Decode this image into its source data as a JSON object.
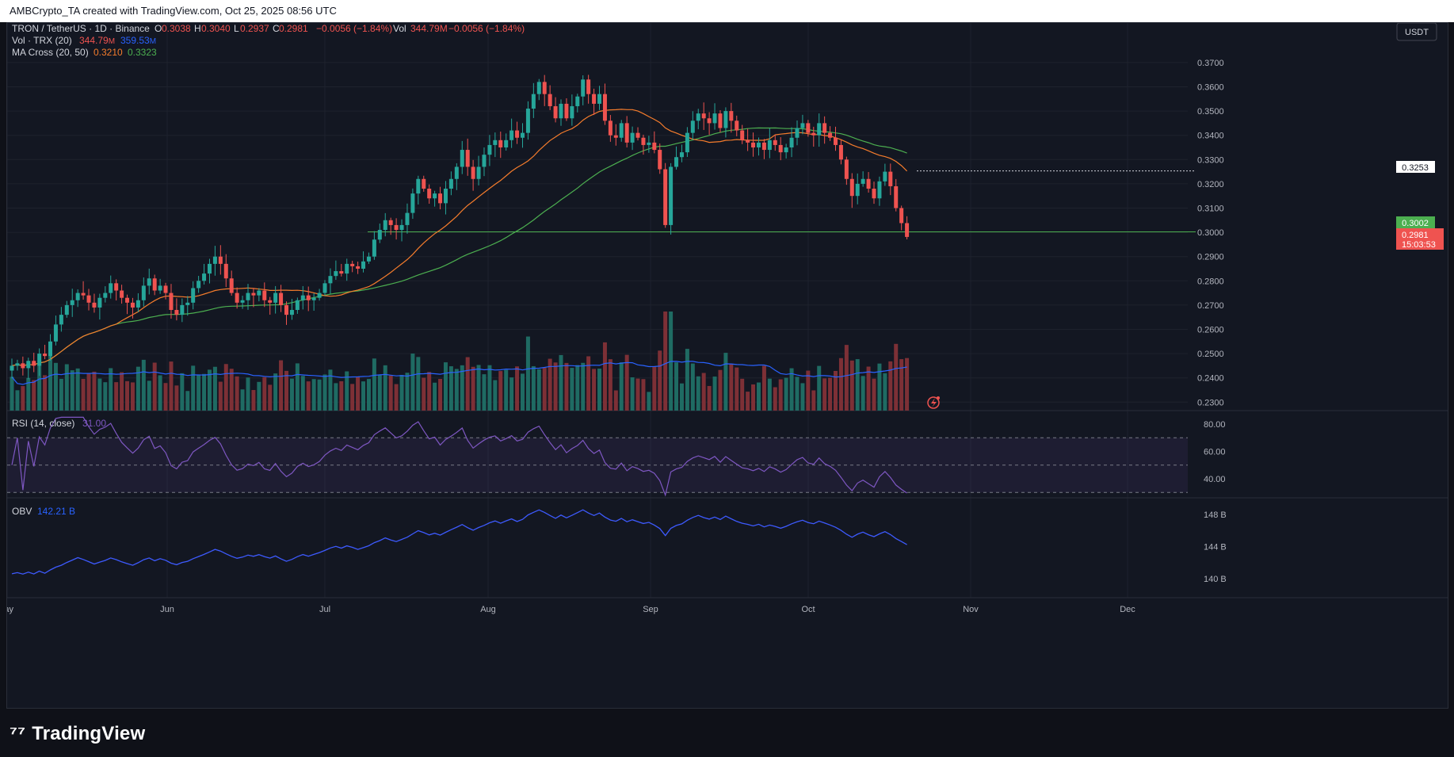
{
  "header": {
    "text": "AMBCrypto_TA created with TradingView.com, Oct 25, 2025 08:56 UTC"
  },
  "symbol_legend": {
    "name": "TRON / TetherUS · 1D · Binance",
    "o_label": "O",
    "o": "0.3038",
    "h_label": "H",
    "h": "0.3040",
    "l_label": "L",
    "l": "0.2937",
    "c_label": "C",
    "c": "0.2981",
    "change": "−0.0056 (−1.84%)",
    "vol_label": "Vol",
    "vol": "344.79M",
    "vol_change": "−0.0056 (−1.84%)"
  },
  "vol_legend": {
    "name": "Vol · TRX (20)",
    "v1": "344.79",
    "v1_unit": "M",
    "v2": "359.53",
    "v2_unit": "M"
  },
  "ma_legend": {
    "name": "MA Cross (20, 50)",
    "v1": "0.3210",
    "v2": "0.3323"
  },
  "rsi_legend": {
    "name": "RSI (14, close)",
    "value": "31.00"
  },
  "obv_legend": {
    "name": "OBV",
    "value": "142.21 B"
  },
  "currency_button": "USDT",
  "price_tags": {
    "level": "0.3253",
    "support": "0.3002",
    "last": "0.2981",
    "countdown": "15:03:53"
  },
  "colors": {
    "up": "#26a69a",
    "down": "#ef5350",
    "ma_fast": "#f57c2c",
    "ma_slow": "#4caf50",
    "vol_ma": "#2962ff",
    "rsi": "#7e57c2",
    "obv": "#3d5afe",
    "support": "#4caf50"
  },
  "brand": "TradingView",
  "chart_data": {
    "type": "candlestick",
    "title": "TRON / TetherUS · 1D · Binance",
    "x_labels": [
      "May",
      "Jun",
      "Jul",
      "Aug",
      "Sep",
      "Oct",
      "Nov",
      "Dec"
    ],
    "price_axis": {
      "ticks": [
        "0.3700",
        "0.3600",
        "0.3500",
        "0.3400",
        "0.3300",
        "0.3200",
        "0.3100",
        "0.3000",
        "0.2900",
        "0.2800",
        "0.2700",
        "0.2600",
        "0.2500",
        "0.2400",
        "0.2300"
      ],
      "range": [
        0.2265,
        0.3765
      ]
    },
    "rsi_axis": {
      "ticks": [
        "80.00",
        "60.00",
        "40.00"
      ],
      "upper": 70,
      "middle": 50,
      "lower": 30
    },
    "obv_axis": {
      "ticks": [
        "148 B",
        "144 B",
        "140 B"
      ]
    },
    "support_level": 0.3002,
    "resistance_level": 0.3253,
    "series": [
      {
        "name": "TRON / TetherUS",
        "closes": [
          0.245,
          0.246,
          0.244,
          0.247,
          0.245,
          0.25,
          0.249,
          0.255,
          0.262,
          0.266,
          0.27,
          0.272,
          0.275,
          0.274,
          0.271,
          0.269,
          0.273,
          0.275,
          0.279,
          0.276,
          0.273,
          0.271,
          0.269,
          0.272,
          0.278,
          0.281,
          0.276,
          0.278,
          0.275,
          0.268,
          0.266,
          0.27,
          0.271,
          0.277,
          0.28,
          0.283,
          0.287,
          0.29,
          0.287,
          0.281,
          0.275,
          0.271,
          0.272,
          0.275,
          0.274,
          0.276,
          0.272,
          0.271,
          0.275,
          0.27,
          0.266,
          0.268,
          0.272,
          0.274,
          0.272,
          0.273,
          0.275,
          0.279,
          0.282,
          0.284,
          0.283,
          0.287,
          0.286,
          0.285,
          0.288,
          0.29,
          0.297,
          0.301,
          0.305,
          0.303,
          0.301,
          0.303,
          0.308,
          0.316,
          0.322,
          0.318,
          0.314,
          0.316,
          0.312,
          0.318,
          0.322,
          0.327,
          0.334,
          0.327,
          0.322,
          0.327,
          0.332,
          0.336,
          0.338,
          0.335,
          0.338,
          0.342,
          0.339,
          0.341,
          0.351,
          0.357,
          0.362,
          0.357,
          0.352,
          0.347,
          0.353,
          0.347,
          0.352,
          0.356,
          0.363,
          0.357,
          0.353,
          0.357,
          0.346,
          0.34,
          0.339,
          0.345,
          0.337,
          0.341,
          0.339,
          0.336,
          0.337,
          0.334,
          0.326,
          0.303,
          0.327,
          0.331,
          0.333,
          0.341,
          0.346,
          0.349,
          0.347,
          0.345,
          0.349,
          0.343,
          0.35,
          0.346,
          0.342,
          0.338,
          0.337,
          0.335,
          0.337,
          0.334,
          0.338,
          0.336,
          0.333,
          0.335,
          0.339,
          0.343,
          0.345,
          0.341,
          0.34,
          0.345,
          0.341,
          0.339,
          0.336,
          0.33,
          0.322,
          0.315,
          0.32,
          0.322,
          0.318,
          0.314,
          0.321,
          0.325,
          0.319,
          0.31,
          0.3038,
          0.2981
        ]
      },
      {
        "name": "MA 20",
        "value": 0.321
      },
      {
        "name": "MA 50",
        "value": 0.3323
      }
    ]
  }
}
